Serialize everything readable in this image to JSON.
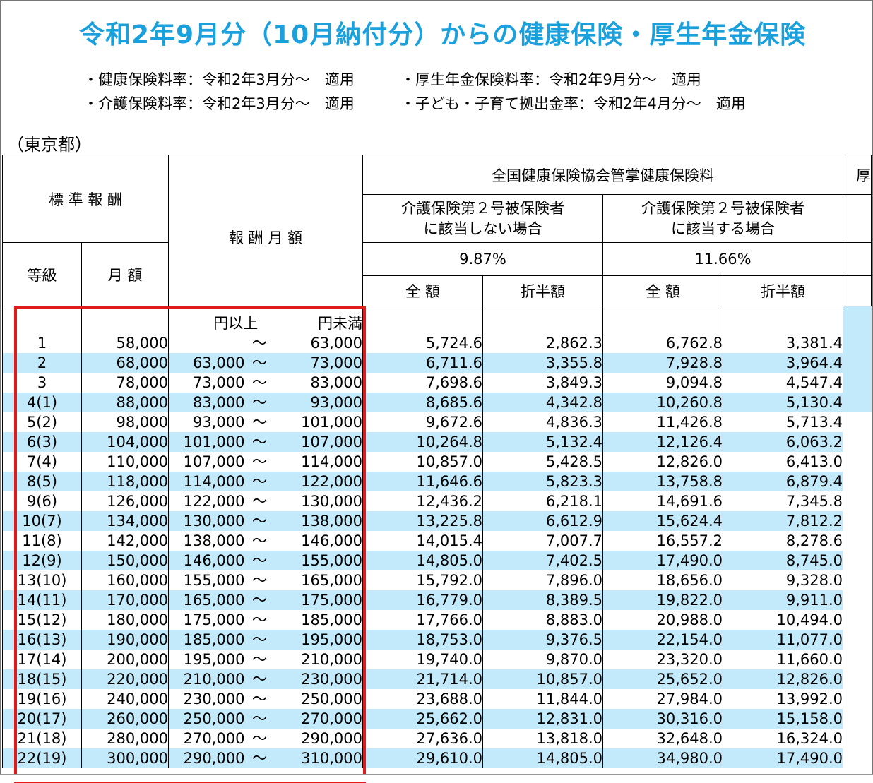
{
  "title": "令和2年9月分（10月納付分）からの健康保険・厚生年金保険",
  "notes": {
    "health_rate": "・健康保険料率：令和2年3月分～　適用",
    "pension_rate": "・厚生年金保険料率：令和2年9月分～　適用",
    "care_rate": "・介護保険料率：令和2年3月分～　適用",
    "child_rate": "・子ども・子育て拠出金率：令和2年4月分～　適用"
  },
  "region": "（東京都）",
  "headers": {
    "standard": "標 準 報 酬",
    "monthly_range": "報 酬 月 額",
    "kyokai": "全国健康保険協会管掌健康保険料",
    "pension_cut": "厚",
    "not_care": "介護保険第２号被保険者\nに該当しない場合",
    "care": "介護保険第２号被保険者\nに該当する場合",
    "rate_not_care": "9.87%",
    "rate_care": "11.66%",
    "grade": "等級",
    "month_amount": "月 額",
    "full": "全 額",
    "half": "折半額",
    "from": "円以上",
    "to": "円未満"
  },
  "rows": [
    {
      "grade": "1",
      "monthly": "58,000",
      "from": "",
      "tilde": "～",
      "to": "63,000",
      "full1": "5,724.6",
      "half1": "2,862.3",
      "full2": "6,762.8",
      "half2": "3,381.4"
    },
    {
      "grade": "2",
      "monthly": "68,000",
      "from": "63,000",
      "tilde": "～",
      "to": "73,000",
      "full1": "6,711.6",
      "half1": "3,355.8",
      "full2": "7,928.8",
      "half2": "3,964.4"
    },
    {
      "grade": "3",
      "monthly": "78,000",
      "from": "73,000",
      "tilde": "～",
      "to": "83,000",
      "full1": "7,698.6",
      "half1": "3,849.3",
      "full2": "9,094.8",
      "half2": "4,547.4"
    },
    {
      "grade": "4(1)",
      "monthly": "88,000",
      "from": "83,000",
      "tilde": "～",
      "to": "93,000",
      "full1": "8,685.6",
      "half1": "4,342.8",
      "full2": "10,260.8",
      "half2": "5,130.4"
    },
    {
      "grade": "5(2)",
      "monthly": "98,000",
      "from": "93,000",
      "tilde": "～",
      "to": "101,000",
      "full1": "9,672.6",
      "half1": "4,836.3",
      "full2": "11,426.8",
      "half2": "5,713.4"
    },
    {
      "grade": "6(3)",
      "monthly": "104,000",
      "from": "101,000",
      "tilde": "～",
      "to": "107,000",
      "full1": "10,264.8",
      "half1": "5,132.4",
      "full2": "12,126.4",
      "half2": "6,063.2"
    },
    {
      "grade": "7(4)",
      "monthly": "110,000",
      "from": "107,000",
      "tilde": "～",
      "to": "114,000",
      "full1": "10,857.0",
      "half1": "5,428.5",
      "full2": "12,826.0",
      "half2": "6,413.0"
    },
    {
      "grade": "8(5)",
      "monthly": "118,000",
      "from": "114,000",
      "tilde": "～",
      "to": "122,000",
      "full1": "11,646.6",
      "half1": "5,823.3",
      "full2": "13,758.8",
      "half2": "6,879.4"
    },
    {
      "grade": "9(6)",
      "monthly": "126,000",
      "from": "122,000",
      "tilde": "～",
      "to": "130,000",
      "full1": "12,436.2",
      "half1": "6,218.1",
      "full2": "14,691.6",
      "half2": "7,345.8"
    },
    {
      "grade": "10(7)",
      "monthly": "134,000",
      "from": "130,000",
      "tilde": "～",
      "to": "138,000",
      "full1": "13,225.8",
      "half1": "6,612.9",
      "full2": "15,624.4",
      "half2": "7,812.2"
    },
    {
      "grade": "11(8)",
      "monthly": "142,000",
      "from": "138,000",
      "tilde": "～",
      "to": "146,000",
      "full1": "14,015.4",
      "half1": "7,007.7",
      "full2": "16,557.2",
      "half2": "8,278.6"
    },
    {
      "grade": "12(9)",
      "monthly": "150,000",
      "from": "146,000",
      "tilde": "～",
      "to": "155,000",
      "full1": "14,805.0",
      "half1": "7,402.5",
      "full2": "17,490.0",
      "half2": "8,745.0"
    },
    {
      "grade": "13(10)",
      "monthly": "160,000",
      "from": "155,000",
      "tilde": "～",
      "to": "165,000",
      "full1": "15,792.0",
      "half1": "7,896.0",
      "full2": "18,656.0",
      "half2": "9,328.0"
    },
    {
      "grade": "14(11)",
      "monthly": "170,000",
      "from": "165,000",
      "tilde": "～",
      "to": "175,000",
      "full1": "16,779.0",
      "half1": "8,389.5",
      "full2": "19,822.0",
      "half2": "9,911.0"
    },
    {
      "grade": "15(12)",
      "monthly": "180,000",
      "from": "175,000",
      "tilde": "～",
      "to": "185,000",
      "full1": "17,766.0",
      "half1": "8,883.0",
      "full2": "20,988.0",
      "half2": "10,494.0"
    },
    {
      "grade": "16(13)",
      "monthly": "190,000",
      "from": "185,000",
      "tilde": "～",
      "to": "195,000",
      "full1": "18,753.0",
      "half1": "9,376.5",
      "full2": "22,154.0",
      "half2": "11,077.0"
    },
    {
      "grade": "17(14)",
      "monthly": "200,000",
      "from": "195,000",
      "tilde": "～",
      "to": "210,000",
      "full1": "19,740.0",
      "half1": "9,870.0",
      "full2": "23,320.0",
      "half2": "11,660.0"
    },
    {
      "grade": "18(15)",
      "monthly": "220,000",
      "from": "210,000",
      "tilde": "～",
      "to": "230,000",
      "full1": "21,714.0",
      "half1": "10,857.0",
      "full2": "25,652.0",
      "half2": "12,826.0"
    },
    {
      "grade": "19(16)",
      "monthly": "240,000",
      "from": "230,000",
      "tilde": "～",
      "to": "250,000",
      "full1": "23,688.0",
      "half1": "11,844.0",
      "full2": "27,984.0",
      "half2": "13,992.0"
    },
    {
      "grade": "20(17)",
      "monthly": "260,000",
      "from": "250,000",
      "tilde": "～",
      "to": "270,000",
      "full1": "25,662.0",
      "half1": "12,831.0",
      "full2": "30,316.0",
      "half2": "15,158.0"
    },
    {
      "grade": "21(18)",
      "monthly": "280,000",
      "from": "270,000",
      "tilde": "～",
      "to": "290,000",
      "full1": "27,636.0",
      "half1": "13,818.0",
      "full2": "32,648.0",
      "half2": "16,324.0"
    },
    {
      "grade": "22(19)",
      "monthly": "300,000",
      "from": "290,000",
      "tilde": "～",
      "to": "310,000",
      "full1": "29,610.0",
      "half1": "14,805.0",
      "full2": "34,980.0",
      "half2": "17,490.0"
    }
  ],
  "colors": {
    "title": "#1aa0dc",
    "row_highlight": "#c2eafa",
    "annotation_box": "#e01b1b"
  }
}
